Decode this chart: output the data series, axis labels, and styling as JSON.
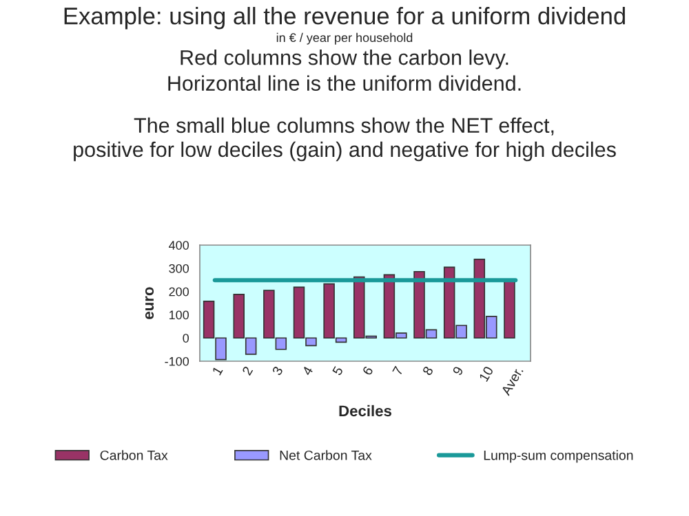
{
  "chart_data": {
    "type": "bar",
    "title": "Example: using all the revenue for a uniform dividend",
    "subtitle": "in € / year per household",
    "annotations": [
      "Red columns show the carbon levy.",
      "Horizontal line is the uniform dividend.",
      "The small blue columns show the NET effect,\npositive for low deciles (gain) and negative for high deciles"
    ],
    "xlabel": "Deciles",
    "ylabel": "euro",
    "categories": [
      "1",
      "2",
      "3",
      "4",
      "5",
      "6",
      "7",
      "8",
      "9",
      "10",
      "Aver."
    ],
    "series": [
      {
        "name": "Carbon Tax",
        "color": "#993366",
        "values": [
          158,
          188,
          205,
          219,
          233,
          263,
          272,
          286,
          305,
          339,
          249
        ]
      },
      {
        "name": "Net Carbon Tax",
        "color": "#9999ff",
        "values": [
          -93,
          -70,
          -49,
          -33,
          -18,
          8,
          21,
          35,
          54,
          93,
          null
        ]
      },
      {
        "name": "Lump-sum compensation",
        "color": "#1a9999",
        "type": "line",
        "values": [
          249,
          249,
          249,
          249,
          249,
          249,
          249,
          249,
          249,
          249,
          249
        ]
      }
    ],
    "ylim": [
      -100,
      400
    ],
    "yticks": [
      -100,
      0,
      100,
      200,
      300,
      400
    ],
    "legend": "bottom"
  }
}
